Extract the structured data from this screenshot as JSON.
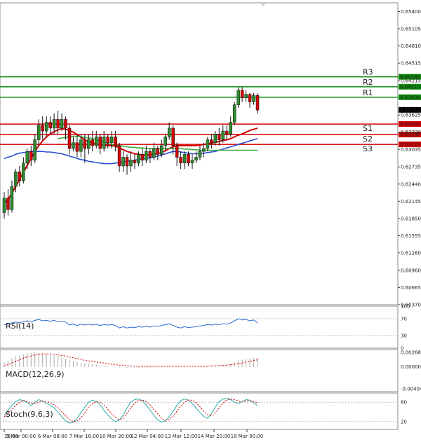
{
  "chart_data": {
    "type": "candlestick",
    "price_axis": {
      "ylim": [
        0.6037,
        0.6555
      ],
      "ticks": [
        "0.65400",
        "0.65105",
        "0.64810",
        "0.64515",
        "0.64215",
        "0.63625",
        "0.63330",
        "0.63035",
        "0.62735",
        "0.62440",
        "0.62145",
        "0.61850",
        "0.61555",
        "0.61260",
        "0.60960",
        "0.60665",
        "0.60370"
      ]
    },
    "x_axis": {
      "ticks": [
        "16:00",
        "5 Mar 00:00",
        "6 Mar 08:00",
        "7 Mar 16:00",
        "10 Mar 20:00",
        "12 Mar 04:00",
        "13 Mar 12:00",
        "14 Mar 20:00",
        "18 Mar 00:00"
      ]
    },
    "levels": [
      {
        "name": "R3",
        "value": 0.6428,
        "price_label": "0.64280",
        "color": "#0a8a0a"
      },
      {
        "name": "R2",
        "value": 0.6411,
        "price_label": "0.64110",
        "color": "#0a8a0a"
      },
      {
        "name": "R1",
        "value": 0.6393,
        "price_label": "0.63930",
        "color": "#0a8a0a"
      },
      {
        "name": "S1",
        "value": 0.6347,
        "price_label": "0.63470",
        "color": "#d40000"
      },
      {
        "name": "S2",
        "value": 0.6329,
        "price_label": "0.63290",
        "color": "#d40000"
      },
      {
        "name": "S3",
        "value": 0.6312,
        "price_label": "0.63120",
        "color": "#d40000"
      }
    ],
    "current_price": {
      "value": 0.63713,
      "label": "0.63713"
    },
    "candles": [
      [
        0.6195,
        0.622,
        0.6185,
        0.623
      ],
      [
        0.622,
        0.62,
        0.619,
        0.6235
      ],
      [
        0.62,
        0.624,
        0.6195,
        0.625
      ],
      [
        0.624,
        0.6265,
        0.623,
        0.627
      ],
      [
        0.6265,
        0.625,
        0.624,
        0.6275
      ],
      [
        0.625,
        0.628,
        0.6245,
        0.629
      ],
      [
        0.628,
        0.63,
        0.627,
        0.6305
      ],
      [
        0.63,
        0.6285,
        0.6275,
        0.631
      ],
      [
        0.6285,
        0.632,
        0.628,
        0.633
      ],
      [
        0.632,
        0.6345,
        0.631,
        0.6355
      ],
      [
        0.6345,
        0.6335,
        0.632,
        0.636
      ],
      [
        0.6335,
        0.635,
        0.6325,
        0.636
      ],
      [
        0.635,
        0.634,
        0.633,
        0.636
      ],
      [
        0.634,
        0.6355,
        0.633,
        0.6365
      ],
      [
        0.6355,
        0.634,
        0.633,
        0.637
      ],
      [
        0.634,
        0.6355,
        0.6335,
        0.6365
      ],
      [
        0.6355,
        0.634,
        0.632,
        0.636
      ],
      [
        0.634,
        0.6305,
        0.6295,
        0.6345
      ],
      [
        0.6305,
        0.6315,
        0.63,
        0.6325
      ],
      [
        0.6315,
        0.63,
        0.629,
        0.633
      ],
      [
        0.63,
        0.632,
        0.629,
        0.633
      ],
      [
        0.632,
        0.6305,
        0.628,
        0.633
      ],
      [
        0.6305,
        0.632,
        0.6295,
        0.633
      ],
      [
        0.632,
        0.631,
        0.63,
        0.6335
      ],
      [
        0.631,
        0.6325,
        0.6305,
        0.6335
      ],
      [
        0.6325,
        0.6305,
        0.6295,
        0.633
      ],
      [
        0.6305,
        0.6325,
        0.63,
        0.6335
      ],
      [
        0.6325,
        0.6315,
        0.6305,
        0.633
      ],
      [
        0.6315,
        0.6325,
        0.6305,
        0.6335
      ],
      [
        0.6325,
        0.631,
        0.63,
        0.6335
      ],
      [
        0.631,
        0.6275,
        0.6265,
        0.6315
      ],
      [
        0.6275,
        0.629,
        0.6265,
        0.63
      ],
      [
        0.629,
        0.6275,
        0.626,
        0.6295
      ],
      [
        0.6275,
        0.6285,
        0.6265,
        0.63
      ],
      [
        0.6285,
        0.628,
        0.627,
        0.6295
      ],
      [
        0.628,
        0.6295,
        0.6275,
        0.63
      ],
      [
        0.6295,
        0.6285,
        0.6275,
        0.6305
      ],
      [
        0.6285,
        0.63,
        0.628,
        0.631
      ],
      [
        0.63,
        0.629,
        0.628,
        0.6305
      ],
      [
        0.629,
        0.6305,
        0.6285,
        0.6315
      ],
      [
        0.6305,
        0.6295,
        0.6285,
        0.631
      ],
      [
        0.6295,
        0.631,
        0.629,
        0.632
      ],
      [
        0.631,
        0.6325,
        0.63,
        0.633
      ],
      [
        0.6325,
        0.634,
        0.632,
        0.635
      ],
      [
        0.634,
        0.631,
        0.6295,
        0.6345
      ],
      [
        0.631,
        0.629,
        0.6275,
        0.6315
      ],
      [
        0.629,
        0.628,
        0.627,
        0.63
      ],
      [
        0.628,
        0.6295,
        0.627,
        0.63
      ],
      [
        0.6295,
        0.628,
        0.6275,
        0.63
      ],
      [
        0.628,
        0.6285,
        0.627,
        0.6295
      ],
      [
        0.6285,
        0.629,
        0.628,
        0.63
      ],
      [
        0.629,
        0.63,
        0.6285,
        0.631
      ],
      [
        0.63,
        0.6305,
        0.629,
        0.6315
      ],
      [
        0.6305,
        0.632,
        0.63,
        0.6325
      ],
      [
        0.632,
        0.6315,
        0.6305,
        0.633
      ],
      [
        0.6315,
        0.633,
        0.631,
        0.6335
      ],
      [
        0.633,
        0.632,
        0.631,
        0.634
      ],
      [
        0.632,
        0.6335,
        0.6315,
        0.6345
      ],
      [
        0.6335,
        0.633,
        0.632,
        0.6345
      ],
      [
        0.633,
        0.635,
        0.6325,
        0.636
      ],
      [
        0.635,
        0.638,
        0.6345,
        0.6385
      ],
      [
        0.638,
        0.6405,
        0.6375,
        0.641
      ],
      [
        0.6405,
        0.6392,
        0.6385,
        0.641
      ],
      [
        0.6392,
        0.6398,
        0.6385,
        0.6405
      ],
      [
        0.6398,
        0.6385,
        0.6375,
        0.64
      ],
      [
        0.6385,
        0.6396,
        0.638,
        0.64
      ],
      [
        0.6396,
        0.6371,
        0.6365,
        0.64
      ]
    ],
    "moving_averages": [
      {
        "color": "#d40000",
        "values": [
          0.621,
          0.6218,
          0.6228,
          0.624,
          0.6252,
          0.6264,
          0.6276,
          0.6288,
          0.63,
          0.631,
          0.6318,
          0.6325,
          0.633,
          0.6334,
          0.6337,
          0.6339,
          0.6338,
          0.6336,
          0.6333,
          0.6329,
          0.6324,
          0.632,
          0.6317,
          0.6315,
          0.6313,
          0.6312,
          0.6311,
          0.631,
          0.631,
          0.6309,
          0.6306,
          0.6303,
          0.63,
          0.6298,
          0.6296,
          0.6295,
          0.6294,
          0.6294,
          0.6294,
          0.6295,
          0.6296,
          0.6298,
          0.6301,
          0.6305,
          0.6308,
          0.631,
          0.631,
          0.631,
          0.631,
          0.631,
          0.631,
          0.6311,
          0.6312,
          0.6313,
          0.6314,
          0.6316,
          0.6317,
          0.6319,
          0.632,
          0.6322,
          0.6325,
          0.6328,
          0.633,
          0.6333,
          0.6336,
          0.6338,
          0.634
        ]
      },
      {
        "color": "#2e4fd6",
        "values": [
          0.6288,
          0.629,
          0.6292,
          0.6295,
          0.6297,
          0.6298,
          0.6299,
          0.63,
          0.63,
          0.63,
          0.63,
          0.6299,
          0.6299,
          0.6298,
          0.6297,
          0.6296,
          0.6294,
          0.6292,
          0.629,
          0.6288,
          0.6286,
          0.6285,
          0.6283,
          0.6282,
          0.6281,
          0.628,
          0.6279,
          0.6279,
          0.6279,
          0.628,
          0.6281,
          0.6282,
          0.6283,
          0.6284,
          0.6285,
          0.6286,
          0.6287,
          0.6288,
          0.6289,
          0.629,
          0.6292,
          0.6294,
          0.6296,
          0.6298,
          0.63,
          0.63,
          0.6299,
          0.6298,
          0.6297,
          0.6296,
          0.6296,
          0.6296,
          0.6297,
          0.6298,
          0.6299,
          0.63,
          0.6302,
          0.6304,
          0.6306,
          0.6308,
          0.631,
          0.6312,
          0.6314,
          0.6316,
          0.6318,
          0.632,
          0.6322
        ]
      },
      {
        "color": "#3aa83a",
        "values": [
          null,
          null,
          null,
          null,
          null,
          null,
          null,
          null,
          null,
          null,
          null,
          null,
          null,
          null,
          0.6322,
          0.6323,
          0.6324,
          0.6325,
          0.6326,
          0.6326,
          0.6325,
          0.6324,
          0.6323,
          0.6322,
          0.632,
          0.6318,
          0.6316,
          0.6314,
          0.6312,
          0.6311,
          0.631,
          0.6309,
          0.6308,
          0.6307,
          0.6307,
          0.6306,
          0.6306,
          0.6305,
          0.6305,
          0.6305,
          0.6305,
          0.6305,
          0.6305,
          0.6305,
          0.6305,
          0.6305,
          0.6305,
          0.6304,
          0.6304,
          0.6303,
          0.6303,
          0.6302,
          0.6302,
          0.6302,
          0.6302,
          0.6302,
          0.6302,
          0.6302,
          0.6302,
          0.6302,
          0.6302,
          0.6302,
          0.6302,
          0.6302,
          0.6302,
          0.6302,
          0.6302
        ]
      }
    ],
    "rsi": {
      "label": "RSI(14)",
      "ticks": [
        "100",
        "70",
        "30",
        "0"
      ],
      "ylim": [
        0,
        100
      ],
      "values": [
        55,
        58,
        60,
        62,
        60,
        63,
        65,
        63,
        66,
        68,
        65,
        66,
        64,
        66,
        63,
        64,
        62,
        55,
        57,
        54,
        57,
        55,
        57,
        55,
        57,
        54,
        56,
        55,
        56,
        54,
        48,
        51,
        48,
        50,
        49,
        51,
        50,
        52,
        50,
        53,
        52,
        54,
        56,
        58,
        54,
        50,
        48,
        51,
        49,
        50,
        51,
        53,
        54,
        56,
        55,
        57,
        56,
        58,
        57,
        60,
        65,
        70,
        67,
        68,
        65,
        67,
        60
      ]
    },
    "macd": {
      "label": "MACD(12,26,9)",
      "ticks": [
        "0.00268",
        "0.00000",
        "-0.004041"
      ],
      "ylim": [
        -0.004041,
        0.00268
      ],
      "histogram": [
        0.0008,
        0.0012,
        0.0016,
        0.0019,
        0.0021,
        0.0023,
        0.0025,
        0.0026,
        0.0027,
        0.0026,
        0.0025,
        0.0024,
        0.0022,
        0.0021,
        0.0019,
        0.0017,
        0.0015,
        0.0013,
        0.0011,
        0.0009,
        0.0008,
        0.0007,
        0.0006,
        0.0005,
        0.0004,
        0.0003,
        0.0002,
        0.0001,
        0.0,
        0.0,
        -0.0001,
        -0.0001,
        -0.0002,
        -0.0002,
        -0.0002,
        -0.0002,
        -0.0002,
        -0.0002,
        -0.0002,
        -0.0001,
        -0.0001,
        -0.0001,
        0.0,
        0.0001,
        0.0001,
        0.0001,
        0.0,
        0.0,
        0.0,
        0.0,
        0.0,
        0.0001,
        0.0001,
        0.0002,
        0.0002,
        0.0003,
        0.0003,
        0.0004,
        0.0005,
        0.0006,
        0.0008,
        0.0011,
        0.0013,
        0.0015,
        0.0016,
        0.0017,
        0.0018
      ],
      "signal": [
        0.0002,
        0.0004,
        0.0007,
        0.001,
        0.0013,
        0.0016,
        0.0018,
        0.002,
        0.0022,
        0.0023,
        0.0024,
        0.0024,
        0.0024,
        0.0023,
        0.0022,
        0.0021,
        0.002,
        0.0018,
        0.0017,
        0.0015,
        0.0014,
        0.0012,
        0.0011,
        0.001,
        0.0009,
        0.0008,
        0.0007,
        0.0006,
        0.0005,
        0.0004,
        0.0003,
        0.0003,
        0.0002,
        0.0002,
        0.0001,
        0.0001,
        0.0001,
        0.0001,
        0.0001,
        0.0001,
        0.0001,
        0.0001,
        0.0001,
        0.0001,
        0.0001,
        0.0001,
        0.0001,
        0.0001,
        0.0001,
        0.0001,
        0.0001,
        0.0001,
        0.0001,
        0.0001,
        0.0002,
        0.0002,
        0.0002,
        0.0003,
        0.0003,
        0.0004,
        0.0005,
        0.0006,
        0.0007,
        0.0009,
        0.001,
        0.0012,
        0.0013
      ]
    },
    "stoch": {
      "label": "Stoch(9,6,3)",
      "ticks": [
        "80",
        "20"
      ],
      "ylim": [
        0,
        100
      ],
      "k": [
        40,
        55,
        70,
        82,
        88,
        85,
        78,
        70,
        80,
        88,
        84,
        76,
        70,
        62,
        50,
        35,
        22,
        15,
        18,
        30,
        48,
        65,
        80,
        86,
        82,
        72,
        55,
        40,
        28,
        20,
        25,
        40,
        62,
        80,
        88,
        90,
        85,
        72,
        55,
        40,
        25,
        18,
        22,
        35,
        52,
        70,
        85,
        90,
        86,
        76,
        62,
        48,
        35,
        30,
        45,
        65,
        82,
        90,
        92,
        88,
        80,
        76,
        82,
        88,
        86,
        78,
        70
      ],
      "d": [
        35,
        45,
        58,
        70,
        80,
        85,
        82,
        77,
        76,
        80,
        83,
        82,
        78,
        72,
        63,
        50,
        38,
        26,
        20,
        22,
        32,
        48,
        64,
        76,
        82,
        80,
        72,
        58,
        44,
        32,
        26,
        30,
        45,
        62,
        77,
        85,
        87,
        82,
        72,
        58,
        44,
        30,
        24,
        26,
        36,
        52,
        68,
        80,
        87,
        86,
        78,
        66,
        52,
        42,
        38,
        46,
        62,
        78,
        87,
        90,
        88,
        84,
        82,
        84,
        85,
        82,
        78
      ]
    }
  }
}
